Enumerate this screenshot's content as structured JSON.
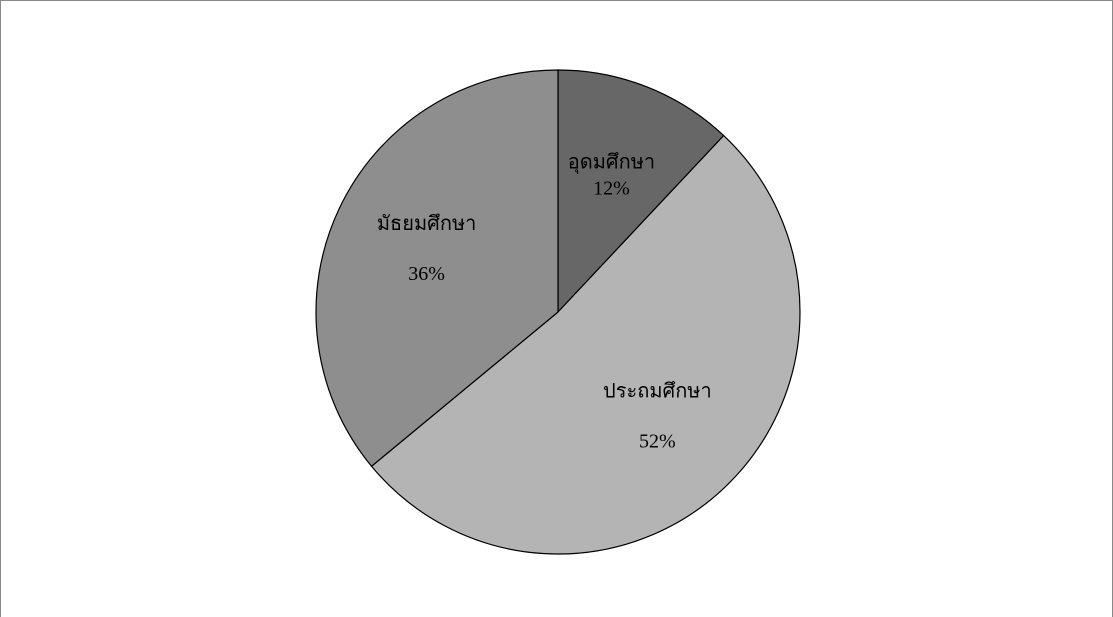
{
  "chart_data": {
    "type": "pie",
    "categories": [
      "อุดมศึกษา",
      "ประถมศึกษา",
      "มัธยมศึกษา"
    ],
    "values": [
      12,
      52,
      36
    ],
    "value_labels": [
      "12%",
      "52%",
      "36%"
    ],
    "colors": [
      "#676767",
      "#b4b4b4",
      "#8e8e8e"
    ]
  }
}
